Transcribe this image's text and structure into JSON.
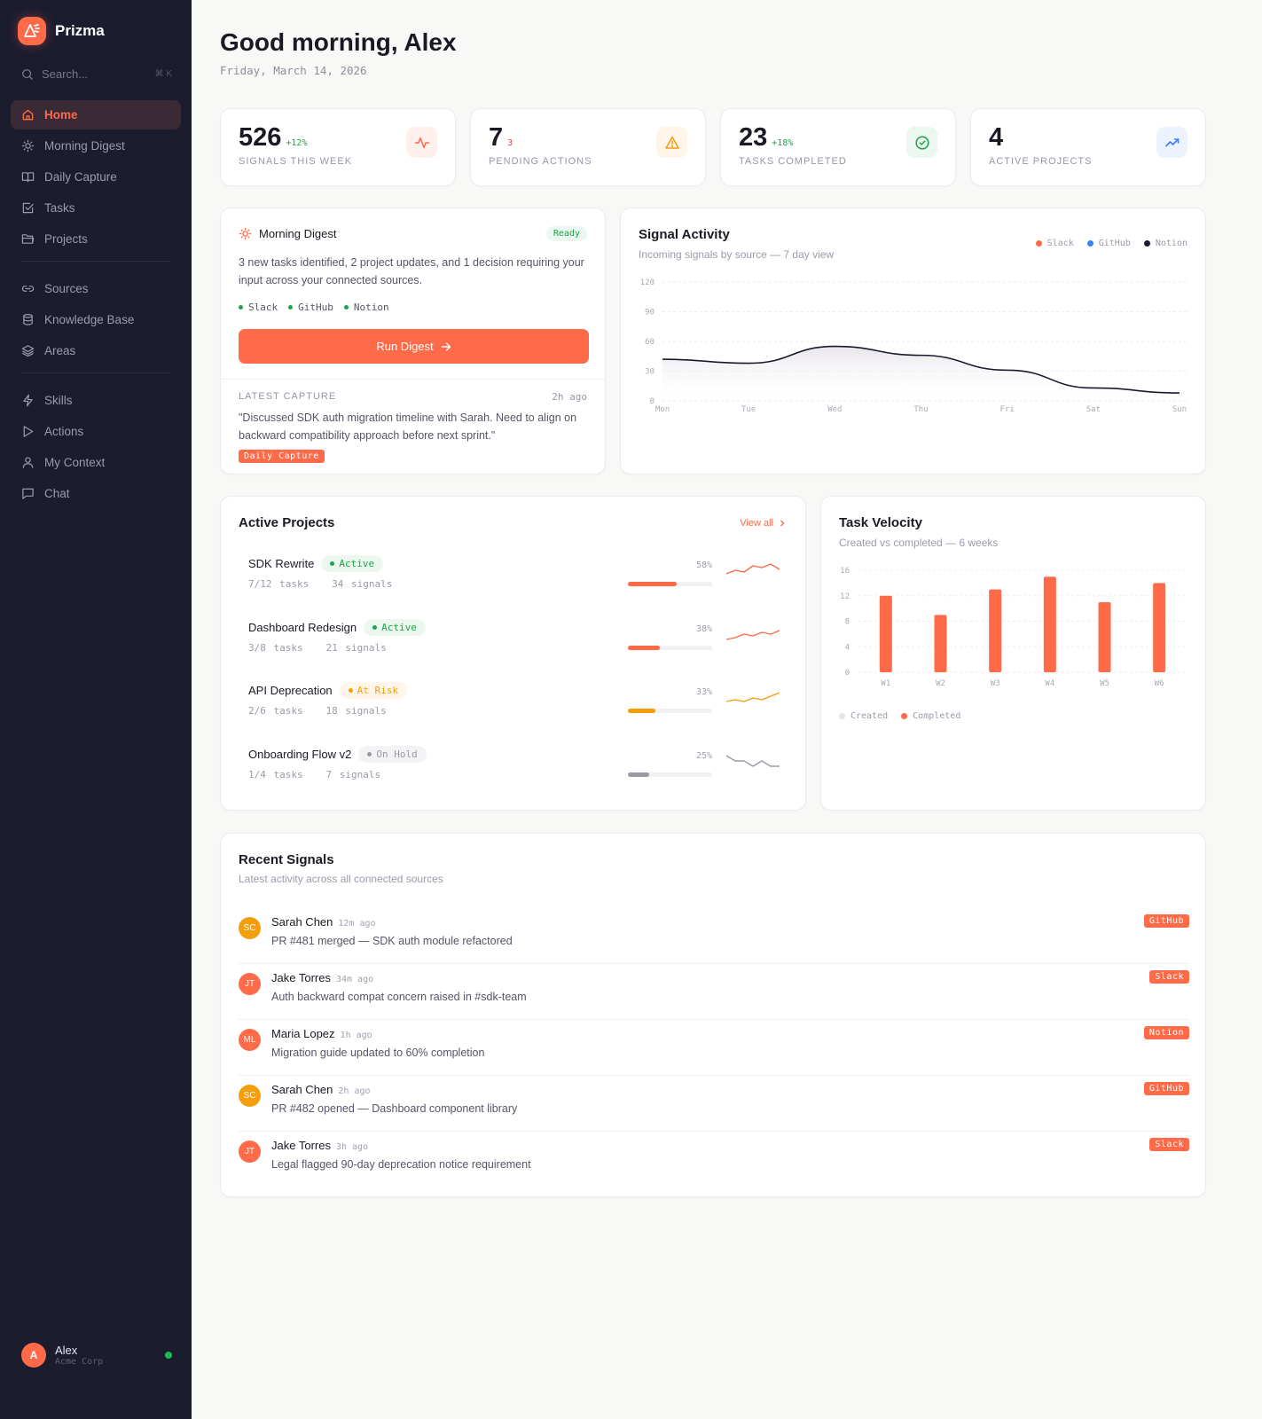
{
  "app": {
    "name": "Prizma"
  },
  "sidebar": {
    "search": {
      "placeholder": "Search...",
      "shortcut": "⌘ K"
    },
    "groups": [
      [
        {
          "label": "Home",
          "icon": "home-icon",
          "active": true
        },
        {
          "label": "Morning Digest",
          "icon": "sun-icon"
        },
        {
          "label": "Daily Capture",
          "icon": "book-open-icon"
        },
        {
          "label": "Tasks",
          "icon": "check-square-icon"
        },
        {
          "label": "Projects",
          "icon": "folder-icon"
        }
      ],
      [
        {
          "label": "Sources",
          "icon": "link-icon"
        },
        {
          "label": "Knowledge Base",
          "icon": "database-icon"
        },
        {
          "label": "Areas",
          "icon": "layers-icon"
        }
      ],
      [
        {
          "label": "Skills",
          "icon": "zap-icon"
        },
        {
          "label": "Actions",
          "icon": "play-icon"
        },
        {
          "label": "My Context",
          "icon": "user-icon"
        },
        {
          "label": "Chat",
          "icon": "message-icon"
        }
      ]
    ],
    "user": {
      "initial": "A",
      "name": "Alex",
      "org": "Acme Corp",
      "status": "online"
    }
  },
  "header": {
    "greeting": "Good morning, Alex",
    "date": "Friday, March 14, 2026"
  },
  "stats": [
    {
      "value": "526",
      "delta": "+12%",
      "delta_color": "#1fa34a",
      "label": "SIGNALS THIS WEEK",
      "icon": "activity-icon",
      "icon_bg": "#fff0ed",
      "icon_color": "#ff6a48"
    },
    {
      "value": "7",
      "delta": "3",
      "delta_color": "#e5484d",
      "label": "PENDING ACTIONS",
      "icon": "alert-triangle-icon",
      "icon_bg": "#fff5e8",
      "icon_color": "#f59e0b"
    },
    {
      "value": "23",
      "delta": "+18%",
      "delta_color": "#1fa34a",
      "label": "TASKS COMPLETED",
      "icon": "check-circle-icon",
      "icon_bg": "#ebf7ef",
      "icon_color": "#1fa34a"
    },
    {
      "value": "4",
      "delta": "",
      "delta_color": "#1fa34a",
      "label": "ACTIVE PROJECTS",
      "icon": "trending-up-icon",
      "icon_bg": "#edf3fe",
      "icon_color": "#3b82f6"
    }
  ],
  "digest": {
    "title": "Morning Digest",
    "status": "Ready",
    "summary": "3 new tasks identified, 2 project updates, and 1 decision requiring your input across your connected sources.",
    "sources": [
      "Slack",
      "GitHub",
      "Notion"
    ],
    "button": "Run Digest",
    "capture": {
      "label": "LATEST CAPTURE",
      "time": "2h ago",
      "text": "\"Discussed SDK auth migration timeline with Sarah. Need to align on backward compatibility approach before next sprint.\"",
      "tag": "Daily Capture"
    }
  },
  "signal_activity": {
    "title": "Signal Activity",
    "subtitle": "Incoming signals by source — 7 day view",
    "legend": [
      {
        "label": "Slack",
        "color": "#ff6a48"
      },
      {
        "label": "GitHub",
        "color": "#3b82f6"
      },
      {
        "label": "Notion",
        "color": "#1a1a2e"
      }
    ]
  },
  "projects": {
    "title": "Active Projects",
    "view_all": "View all",
    "items": [
      {
        "name": "SDK Rewrite",
        "status": "Active",
        "tasks": "7/12 tasks",
        "signals": "34 signals",
        "pct": 58,
        "pct_label": "58%",
        "color": "#ff6a48",
        "spark": [
          6,
          10,
          8,
          15,
          13,
          17,
          11
        ]
      },
      {
        "name": "Dashboard Redesign",
        "status": "Active",
        "tasks": "3/8 tasks",
        "signals": "21 signals",
        "pct": 38,
        "pct_label": "38%",
        "color": "#ff6a48",
        "spark": [
          4,
          6,
          10,
          8,
          12,
          10,
          14
        ]
      },
      {
        "name": "API Deprecation",
        "status": "At Risk",
        "tasks": "2/6 tasks",
        "signals": "18 signals",
        "pct": 33,
        "pct_label": "33%",
        "color": "#f59e0b",
        "spark": [
          5,
          7,
          5,
          9,
          7,
          11,
          15
        ]
      },
      {
        "name": "Onboarding Flow v2",
        "status": "On Hold",
        "tasks": "1/4 tasks",
        "signals": "7 signals",
        "pct": 25,
        "pct_label": "25%",
        "color": "#9a9aa6",
        "spark": [
          16,
          10,
          10,
          4,
          10,
          4,
          4
        ]
      }
    ],
    "status_styles": {
      "Active": {
        "bg": "#ebf7ef",
        "fg": "#1fa34a"
      },
      "At Risk": {
        "bg": "#fff5e8",
        "fg": "#f59e0b"
      },
      "On Hold": {
        "bg": "#f3f3f5",
        "fg": "#9a9aa6"
      }
    }
  },
  "task_velocity": {
    "title": "Task Velocity",
    "subtitle": "Created vs completed — 6 weeks",
    "legend": [
      {
        "label": "Created",
        "color": "#e5e5e8"
      },
      {
        "label": "Completed",
        "color": "#ff6a48"
      }
    ]
  },
  "recent_signals": {
    "title": "Recent Signals",
    "subtitle": "Latest activity across all connected sources",
    "items": [
      {
        "initials": "SC",
        "name": "Sarah Chen",
        "time": "12m ago",
        "message": "PR #481 merged — SDK auth module refactored",
        "source": "GitHub",
        "avatar_color": "#f59e0b"
      },
      {
        "initials": "JT",
        "name": "Jake Torres",
        "time": "34m ago",
        "message": "Auth backward compat concern raised in #sdk-team",
        "source": "Slack",
        "avatar_color": "#ff6a48"
      },
      {
        "initials": "ML",
        "name": "Maria Lopez",
        "time": "1h ago",
        "message": "Migration guide updated to 60% completion",
        "source": "Notion",
        "avatar_color": "#ff6a48"
      },
      {
        "initials": "SC",
        "name": "Sarah Chen",
        "time": "2h ago",
        "message": "PR #482 opened — Dashboard component library",
        "source": "GitHub",
        "avatar_color": "#f59e0b"
      },
      {
        "initials": "JT",
        "name": "Jake Torres",
        "time": "3h ago",
        "message": "Legal flagged 90-day deprecation notice requirement",
        "source": "Slack",
        "avatar_color": "#ff6a48"
      }
    ]
  },
  "chart_data": [
    {
      "type": "area",
      "title": "Signal Activity",
      "subtitle": "Incoming signals by source — 7 day view",
      "categories": [
        "Mon",
        "Tue",
        "Wed",
        "Thu",
        "Fri",
        "Sat",
        "Sun"
      ],
      "series": [
        {
          "name": "Notion",
          "color": "#1a1a2e",
          "values": [
            42,
            38,
            55,
            46,
            31,
            13,
            8
          ]
        }
      ],
      "legend": [
        "Slack",
        "GitHub",
        "Notion"
      ],
      "legend_position": "top-right",
      "yticks": [
        0,
        30,
        60,
        90,
        120
      ],
      "ylim": [
        0,
        120
      ],
      "grid": true,
      "xlabel": "",
      "ylabel": ""
    },
    {
      "type": "bar",
      "title": "Task Velocity",
      "subtitle": "Created vs completed — 6 weeks",
      "categories": [
        "W1",
        "W2",
        "W3",
        "W4",
        "W5",
        "W6"
      ],
      "series": [
        {
          "name": "Completed",
          "color": "#ff6a48",
          "values": [
            12,
            9,
            13,
            15,
            11,
            14
          ]
        }
      ],
      "legend": [
        "Created",
        "Completed"
      ],
      "legend_position": "bottom-left",
      "yticks": [
        0,
        4,
        8,
        12,
        16
      ],
      "ylim": [
        0,
        16
      ],
      "grid": true,
      "xlabel": "",
      "ylabel": ""
    }
  ]
}
